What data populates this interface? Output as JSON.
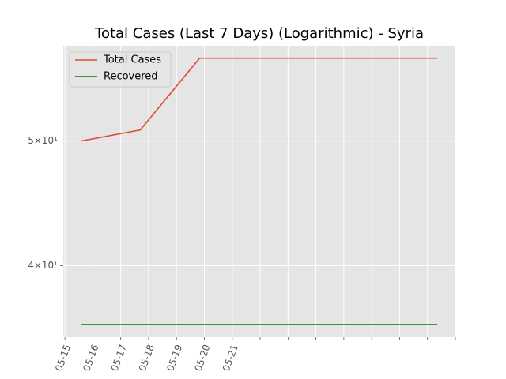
{
  "chart_data": {
    "type": "line",
    "title": "Total Cases (Last 7 Days) (Logarithmic) - Syria",
    "x": [
      0.57,
      2.7,
      4.83,
      6.96,
      9.09,
      11.22,
      13.35
    ],
    "series": [
      {
        "name": "Total Cases",
        "color": "#e24a33",
        "values": [
          50,
          51,
          58,
          58,
          58,
          58,
          58
        ]
      },
      {
        "name": "Recovered",
        "color": "#008000",
        "values": [
          36,
          36,
          36,
          36,
          36,
          36,
          36
        ]
      }
    ],
    "xlim": [
      -0.06,
      14.0
    ],
    "xticks": [
      {
        "value": 0,
        "label": "05-15"
      },
      {
        "value": 1,
        "label": "05-16"
      },
      {
        "value": 2,
        "label": "05-17"
      },
      {
        "value": 3,
        "label": "05-18"
      },
      {
        "value": 4,
        "label": "05-19"
      },
      {
        "value": 5,
        "label": "05-20"
      },
      {
        "value": 6,
        "label": "05-21"
      },
      {
        "value": 7,
        "label": null
      },
      {
        "value": 8,
        "label": null
      },
      {
        "value": 9,
        "label": null
      },
      {
        "value": 10,
        "label": null
      },
      {
        "value": 11,
        "label": null
      },
      {
        "value": 12,
        "label": null
      },
      {
        "value": 13,
        "label": null
      },
      {
        "value": 14,
        "label": null
      }
    ],
    "ylim": [
      35.2,
      59.3
    ],
    "yticks": [
      {
        "value": 40,
        "label": "4×10¹"
      },
      {
        "value": 50,
        "label": "5×10¹"
      }
    ],
    "yscale": "log",
    "grid": true,
    "legend": "upper left"
  }
}
